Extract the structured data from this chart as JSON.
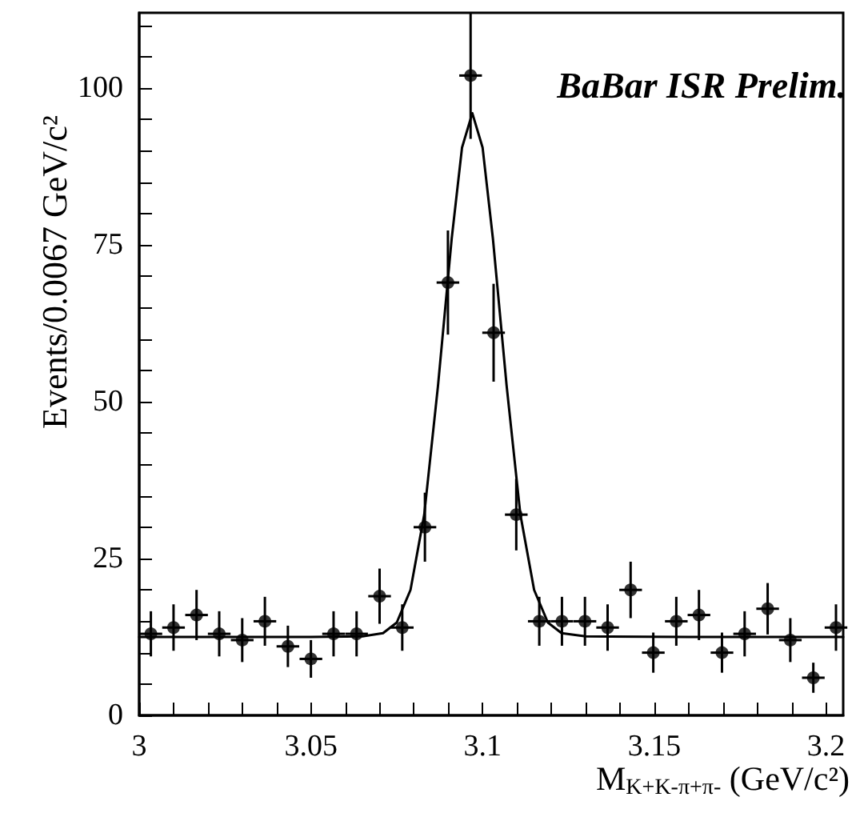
{
  "chart_data": {
    "type": "scatter",
    "xlabel": "M$_{K+K-π+π-}$ (GeV/c²)",
    "ylabel": "Events/0.0067 GeV/c²",
    "annotations": [
      "BaBar ISR Prelim."
    ],
    "xlim": [
      3,
      3.205
    ],
    "ylim": [
      0,
      112
    ],
    "xticks": [
      3,
      {
        "value": 3.01,
        "label": null
      },
      {
        "value": 3.02,
        "label": null
      },
      {
        "value": 3.03,
        "label": null
      },
      {
        "value": 3.04,
        "label": null
      },
      3.05,
      {
        "value": 3.06,
        "label": null
      },
      {
        "value": 3.07,
        "label": null
      },
      {
        "value": 3.08,
        "label": null
      },
      {
        "value": 3.09,
        "label": null
      },
      3.1,
      {
        "value": 3.11,
        "label": null
      },
      {
        "value": 3.12,
        "label": null
      },
      {
        "value": 3.13,
        "label": null
      },
      {
        "value": 3.14,
        "label": null
      },
      3.15,
      {
        "value": 3.16,
        "label": null
      },
      {
        "value": 3.17,
        "label": null
      },
      {
        "value": 3.18,
        "label": null
      },
      {
        "value": 3.19,
        "label": null
      },
      3.2
    ],
    "yticks": [
      0,
      {
        "value": 5,
        "label": null
      },
      {
        "value": 10,
        "label": null
      },
      {
        "value": 15,
        "label": null
      },
      {
        "value": 20,
        "label": null
      },
      25,
      {
        "value": 30,
        "label": null
      },
      {
        "value": 35,
        "label": null
      },
      {
        "value": 40,
        "label": null
      },
      {
        "value": 45,
        "label": null
      },
      50,
      {
        "value": 55,
        "label": null
      },
      {
        "value": 60,
        "label": null
      },
      {
        "value": 65,
        "label": null
      },
      {
        "value": 70,
        "label": null
      },
      75,
      {
        "value": 80,
        "label": null
      },
      {
        "value": 85,
        "label": null
      },
      {
        "value": 90,
        "label": null
      },
      {
        "value": 95,
        "label": null
      },
      100,
      {
        "value": 105,
        "label": null
      },
      {
        "value": 110,
        "label": null
      }
    ],
    "grid": false,
    "marker": "circle",
    "series": [
      {
        "color": "#000000",
        "x": [
          3.0034,
          3.01,
          3.0167,
          3.0233,
          3.03,
          3.0366,
          3.0433,
          3.05,
          3.0566,
          3.0633,
          3.07,
          3.0766,
          3.0832,
          3.0899,
          3.0965,
          3.1032,
          3.1098,
          3.1165,
          3.1231,
          3.1298,
          3.1364,
          3.1431,
          3.1497,
          3.1564,
          3.163,
          3.1697,
          3.1763,
          3.183,
          3.1896,
          3.1963,
          3.2029
        ],
        "values": [
          13,
          14,
          16,
          13,
          12,
          15,
          11,
          9,
          13,
          13,
          19,
          14,
          30,
          69,
          102,
          61,
          32,
          15,
          15,
          15,
          14,
          20,
          10,
          15,
          16,
          10,
          13,
          17,
          12,
          6,
          14
        ],
        "errors": [
          3.6,
          3.7,
          4,
          3.6,
          3.5,
          3.9,
          3.3,
          3,
          3.6,
          3.6,
          4.4,
          3.7,
          5.5,
          8.3,
          10.1,
          7.8,
          5.7,
          3.9,
          3.9,
          3.9,
          3.7,
          4.5,
          3.2,
          3.9,
          4,
          3.2,
          3.6,
          4.1,
          3.5,
          2.4,
          3.7
        ],
        "xerrors": [
          0.0033,
          0.0033,
          0.0033,
          0.0033,
          0.0033,
          0.0033,
          0.0033,
          0.0033,
          0.0033,
          0.0033,
          0.0033,
          0.0033,
          0.0033,
          0.0033,
          0.0033,
          0.0033,
          0.0033,
          0.0033,
          0.0033,
          0.0033,
          0.0033,
          0.0033,
          0.0033,
          0.0033,
          0.0033,
          0.0033,
          0.0033,
          0.0033,
          0.0033,
          0.0033,
          0.0033
        ]
      },
      {
        "type": "line",
        "color": "#000000",
        "marker": "none",
        "line_style": "solid",
        "x": [
          3,
          3.05,
          3.065,
          3.071,
          3.075,
          3.079,
          3.083,
          3.087,
          3.091,
          3.094,
          3.097,
          3.1,
          3.103,
          3.107,
          3.111,
          3.115,
          3.119,
          3.123,
          3.13,
          3.16,
          3.205
        ],
        "values": [
          12.5,
          12.5,
          12.6,
          13.1,
          14.8,
          20,
          32,
          52.5,
          76,
          90.5,
          96,
          90.5,
          76,
          52.5,
          32,
          20,
          14.8,
          13.1,
          12.6,
          12.5,
          12.5
        ]
      }
    ]
  }
}
